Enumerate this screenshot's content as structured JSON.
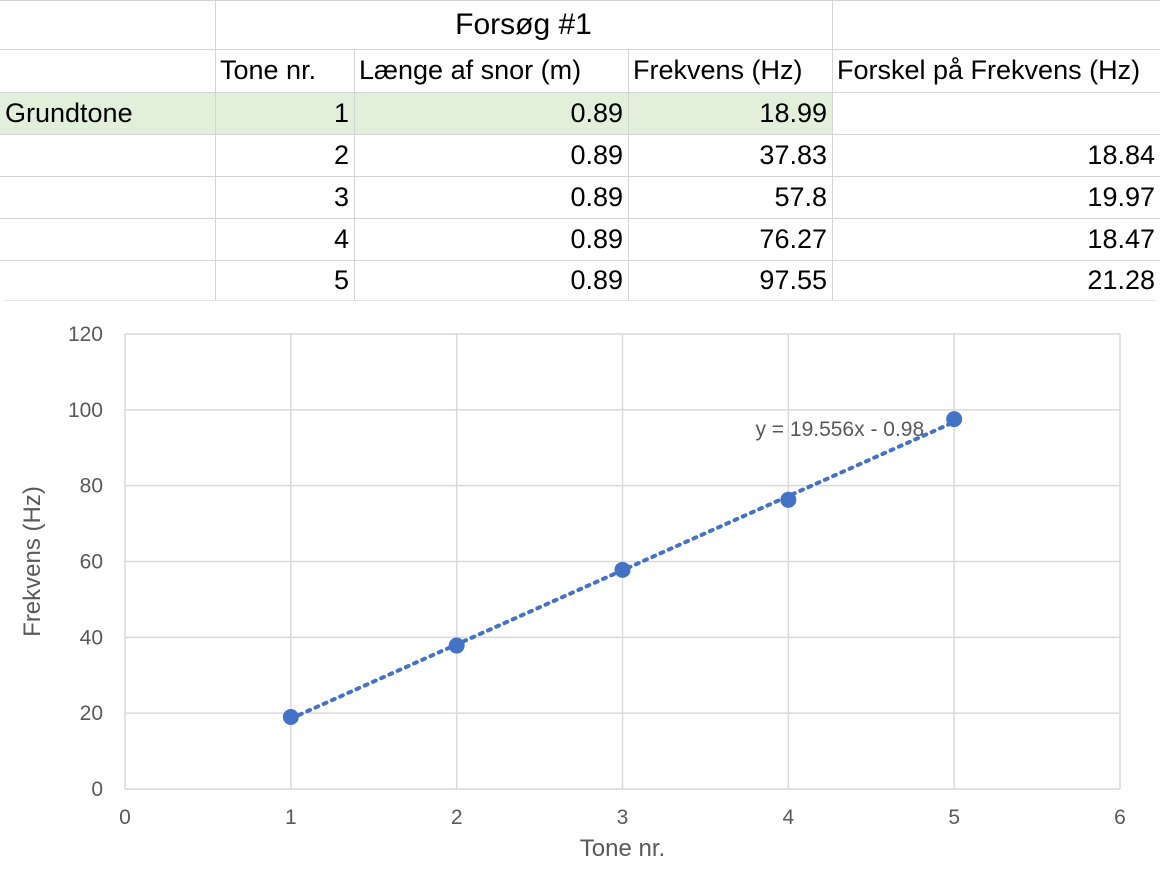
{
  "table": {
    "title": "Forsøg #1",
    "headers": [
      "Tone nr.",
      "Længe af snor (m)",
      "Frekvens (Hz)",
      "Forskel på Frekvens (Hz)"
    ],
    "rows": [
      {
        "label": "Grundtone",
        "tone": "1",
        "length": "0.89",
        "freq": "18.99",
        "diff": ""
      },
      {
        "label": "",
        "tone": "2",
        "length": "0.89",
        "freq": "37.83",
        "diff": "18.84"
      },
      {
        "label": "",
        "tone": "3",
        "length": "0.89",
        "freq": "57.8",
        "diff": "19.97"
      },
      {
        "label": "",
        "tone": "4",
        "length": "0.89",
        "freq": "76.27",
        "diff": "18.47"
      },
      {
        "label": "",
        "tone": "5",
        "length": "0.89",
        "freq": "97.55",
        "diff": "21.28"
      }
    ],
    "highlight_color": "#e2efda"
  },
  "chart_data": {
    "type": "scatter",
    "title": "",
    "xlabel": "Tone nr.",
    "ylabel": "Frekvens (Hz)",
    "xlim": [
      0,
      6
    ],
    "ylim": [
      0,
      120
    ],
    "xticks": [
      0,
      1,
      2,
      3,
      4,
      5,
      6
    ],
    "yticks": [
      0,
      20,
      40,
      60,
      80,
      100,
      120
    ],
    "grid": true,
    "series": [
      {
        "x": [
          1,
          2,
          3,
          4,
          5
        ],
        "y": [
          18.99,
          37.83,
          57.8,
          76.27,
          97.55
        ],
        "color": "#4472c4"
      }
    ],
    "trendline": {
      "type": "linear",
      "slope": 19.556,
      "intercept": -0.98,
      "x_range": [
        1,
        5
      ],
      "style": "dotted",
      "color": "#4472c4",
      "equation_label": "y = 19.556x - 0.98"
    }
  }
}
